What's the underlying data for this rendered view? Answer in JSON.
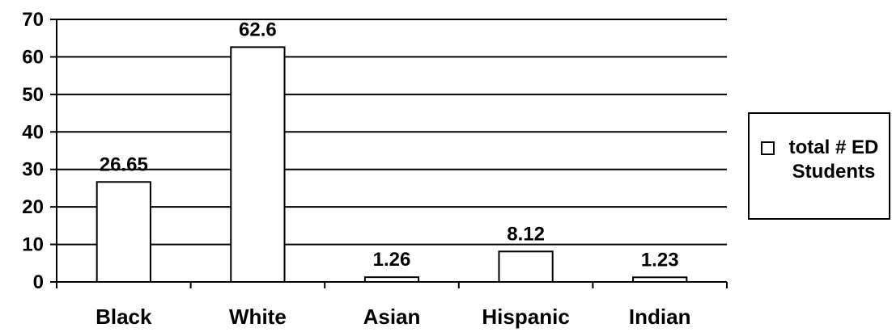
{
  "chart_data": {
    "type": "bar",
    "title": "",
    "xlabel": "",
    "ylabel": "",
    "categories": [
      "Black",
      "White",
      "Asian",
      "Hispanic",
      "Indian"
    ],
    "series": [
      {
        "name": "total # ED Students",
        "values": [
          26.65,
          62.6,
          1.26,
          8.12,
          1.23
        ],
        "data_labels": [
          "26.65",
          "62.6",
          "1.26",
          "8.12",
          "1.23"
        ],
        "fill": "#ffffff",
        "stroke": "#000000"
      }
    ],
    "ylim": [
      0,
      70
    ],
    "yticks": [
      0,
      10,
      20,
      30,
      40,
      50,
      60,
      70
    ],
    "grid": true,
    "legend": {
      "position": "right",
      "line1": "total # ED",
      "line2": "Students"
    }
  }
}
